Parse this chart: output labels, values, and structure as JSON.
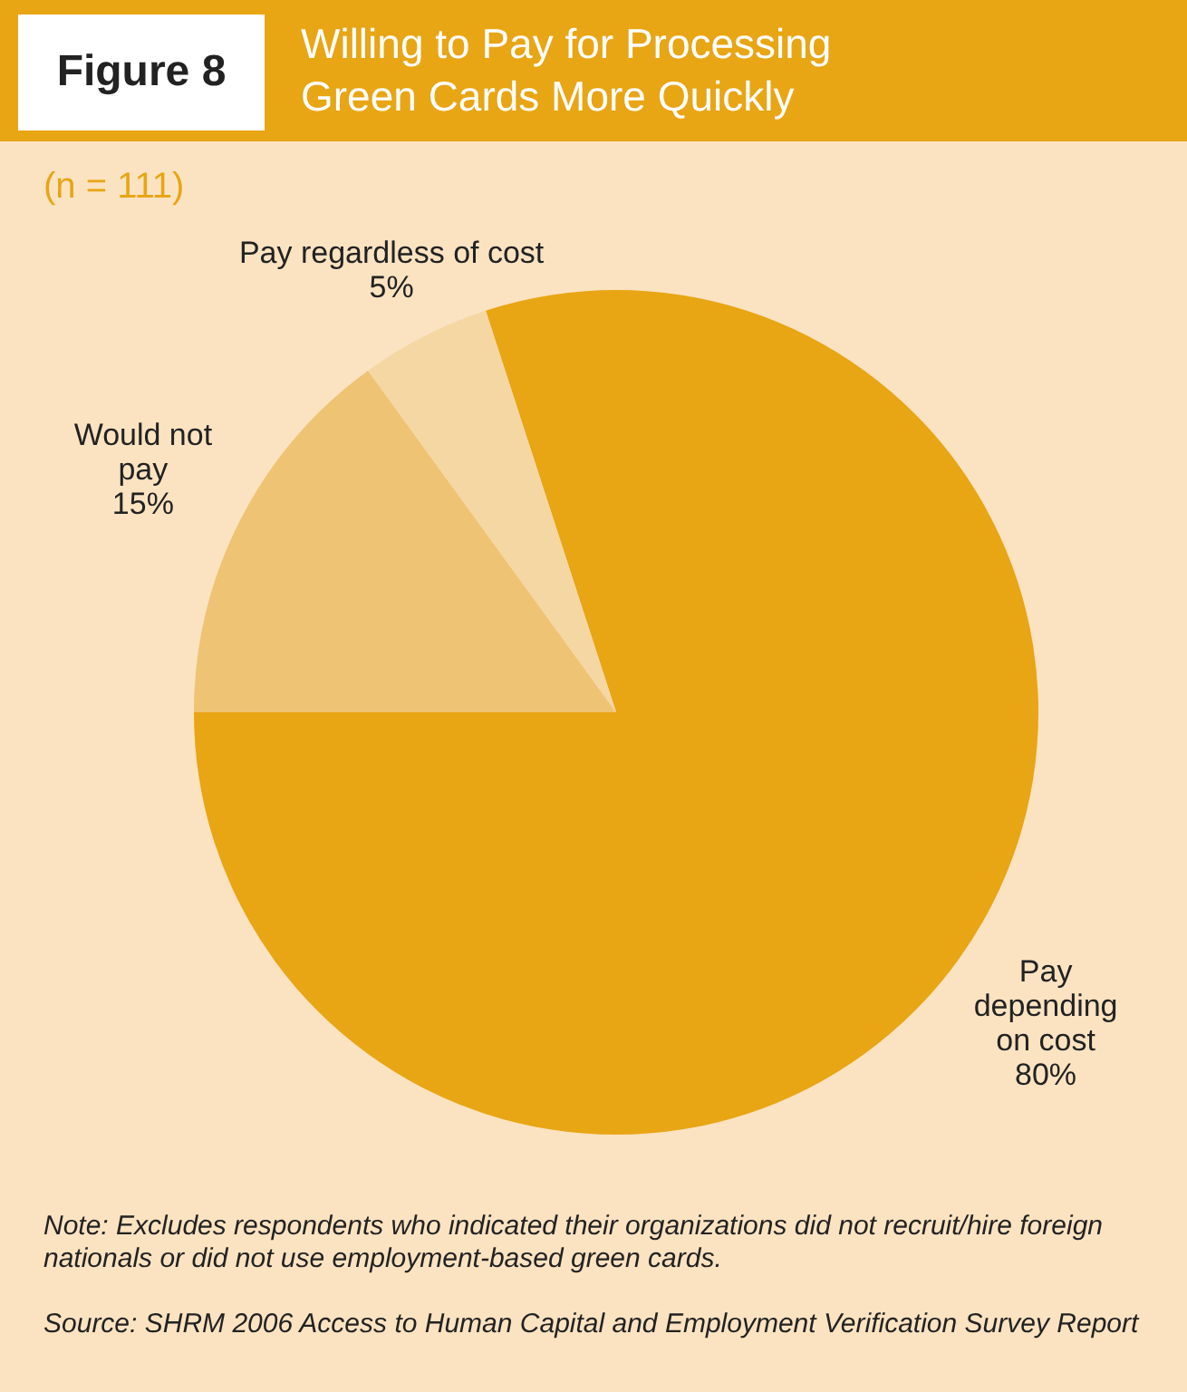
{
  "chart_data": {
    "type": "pie",
    "title": "Willing to Pay for Processing Green Cards More Quickly",
    "subtitle": "(n = 111)",
    "categories": [
      "Pay depending on cost",
      "Would not pay",
      "Pay regardless of cost"
    ],
    "values": [
      80,
      15,
      5
    ],
    "colors": [
      "#e8a514",
      "#efc374",
      "#f5d7a4"
    ],
    "value_labels": [
      "80%",
      "15%",
      "5%"
    ],
    "legend": false,
    "annotations": [
      "Figure 8",
      "Note: Excludes respondents who indicated their organizations did not recruit/hire foreign nationals or did not use employment-based green cards.",
      "Source: SHRM 2006 Access to Human Capital and Employment Verification Survey Report"
    ]
  }
}
